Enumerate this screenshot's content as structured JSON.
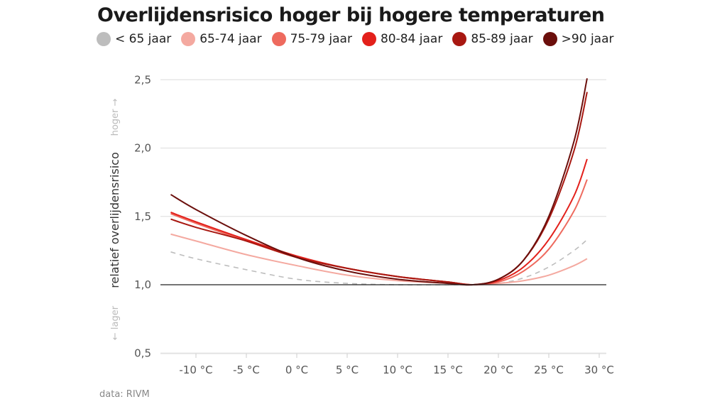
{
  "chart_data": {
    "type": "line",
    "title": "Overlijdensrisico hoger bij hogere temperaturen",
    "ylabel": "relatief overlijdensrisico",
    "ylabel_up": "hoger →",
    "ylabel_down": "← lager",
    "xlabel": "",
    "xlim": [
      -13,
      30.5
    ],
    "ylim": [
      0.5,
      2.5
    ],
    "x_ticks": [
      -10,
      -5,
      0,
      5,
      10,
      15,
      20,
      25,
      30
    ],
    "x_tick_labels": [
      "-10 °C",
      "-5 °C",
      "0 °C",
      "5 °C",
      "10 °C",
      "15 °C",
      "20 °C",
      "25 °C",
      "30 °C"
    ],
    "y_ticks": [
      0.5,
      1.0,
      1.5,
      2.0,
      2.5
    ],
    "y_tick_labels": [
      "0,5",
      "1,0",
      "1,5",
      "2,0",
      "2,5"
    ],
    "reference_line": 1.0,
    "grid": true,
    "legend_position": "top",
    "x": [
      -12.5,
      -10,
      -5,
      0,
      5,
      10,
      15,
      17.5,
      20,
      22.5,
      25,
      27.5,
      28.8
    ],
    "series": [
      {
        "name": "< 65 jaar",
        "color": "#bdbdbd",
        "dashed": true,
        "values": [
          1.24,
          1.19,
          1.11,
          1.04,
          1.01,
          1.0,
          1.0,
          1.0,
          1.01,
          1.05,
          1.13,
          1.25,
          1.33
        ]
      },
      {
        "name": "65-74 jaar",
        "color": "#f4a9a0",
        "dashed": false,
        "values": [
          1.37,
          1.32,
          1.22,
          1.14,
          1.07,
          1.03,
          1.01,
          1.0,
          1.01,
          1.03,
          1.07,
          1.14,
          1.19
        ]
      },
      {
        "name": "75-79 jaar",
        "color": "#ee6a5e",
        "dashed": false,
        "values": [
          1.52,
          1.45,
          1.32,
          1.2,
          1.12,
          1.06,
          1.02,
          1.0,
          1.02,
          1.1,
          1.26,
          1.54,
          1.77
        ]
      },
      {
        "name": "80-84 jaar",
        "color": "#e3201b",
        "dashed": false,
        "values": [
          1.53,
          1.46,
          1.33,
          1.21,
          1.12,
          1.06,
          1.02,
          1.0,
          1.03,
          1.13,
          1.33,
          1.65,
          1.92
        ]
      },
      {
        "name": "85-89 jaar",
        "color": "#a81811",
        "dashed": false,
        "values": [
          1.48,
          1.42,
          1.32,
          1.2,
          1.12,
          1.06,
          1.02,
          1.0,
          1.04,
          1.18,
          1.48,
          1.98,
          2.41
        ]
      },
      {
        "name": ">90 jaar",
        "color": "#6b0f0c",
        "dashed": false,
        "values": [
          1.66,
          1.55,
          1.36,
          1.2,
          1.1,
          1.04,
          1.01,
          1.0,
          1.04,
          1.18,
          1.5,
          2.05,
          2.51
        ]
      }
    ]
  },
  "source": "data: RIVM"
}
